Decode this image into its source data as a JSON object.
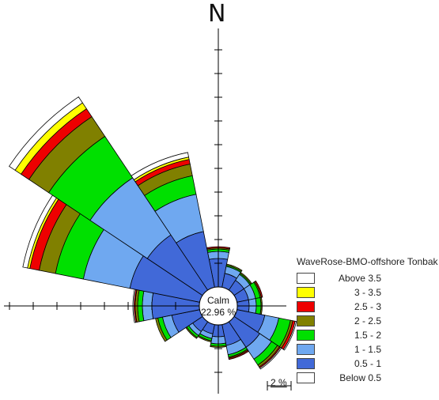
{
  "north_label": "N",
  "calm": {
    "label": "Calm",
    "value": "22.96 %"
  },
  "legend": {
    "title": "WaveRose-BMO-offshore Tonbak",
    "items": [
      {
        "label": "Above 3.5",
        "color": "#ffffff"
      },
      {
        "label": "3 - 3.5",
        "color": "#ffff00"
      },
      {
        "label": "2.5 -   3",
        "color": "#ee0000"
      },
      {
        "label": "2 - 2.5",
        "color": "#808000"
      },
      {
        "label": "1.5 -   2",
        "color": "#00e000"
      },
      {
        "label": "1 - 1.5",
        "color": "#6fa8f0"
      },
      {
        "label": "0.5 -   1",
        "color": "#4169d8"
      },
      {
        "label": "Below 0.5",
        "color": "#ffffff"
      }
    ]
  },
  "scale_label": "2 %",
  "chart_data": {
    "type": "wind-rose",
    "title": "WaveRose-BMO-offshore Tonbak",
    "calm_percent": 22.96,
    "bins": [
      "Below 0.5",
      "0.5 -   1",
      "1 - 1.5",
      "1.5 -   2",
      "2 - 2.5",
      "2.5 -   3",
      "3 - 3.5",
      "Above 3.5"
    ],
    "sectors": [
      {
        "direction_deg": 0,
        "cumulative_percent": [
          0.0,
          1.2,
          1.5,
          1.6,
          1.65,
          1.7,
          1.7,
          1.7
        ]
      },
      {
        "direction_deg": 22.5,
        "cumulative_percent": [
          0.0,
          0.6,
          0.9,
          0.95,
          1.0,
          1.0,
          1.0,
          1.0
        ]
      },
      {
        "direction_deg": 45,
        "cumulative_percent": [
          0.0,
          0.5,
          0.8,
          0.85,
          0.9,
          0.9,
          0.9,
          0.9
        ]
      },
      {
        "direction_deg": 67.5,
        "cumulative_percent": [
          0.0,
          0.5,
          0.8,
          1.0,
          1.05,
          1.1,
          1.1,
          1.1
        ]
      },
      {
        "direction_deg": 90,
        "cumulative_percent": [
          0.0,
          0.5,
          0.8,
          1.0,
          1.05,
          1.05,
          1.05,
          1.05
        ]
      },
      {
        "direction_deg": 112.5,
        "cumulative_percent": [
          0.0,
          1.2,
          1.8,
          2.3,
          2.4,
          2.5,
          2.5,
          2.55
        ]
      },
      {
        "direction_deg": 135,
        "cumulative_percent": [
          0.0,
          1.3,
          1.9,
          2.2,
          2.3,
          2.35,
          2.35,
          2.4
        ]
      },
      {
        "direction_deg": 157.5,
        "cumulative_percent": [
          0.0,
          0.9,
          1.3,
          1.4,
          1.45,
          1.5,
          1.5,
          1.5
        ]
      },
      {
        "direction_deg": 180,
        "cumulative_percent": [
          0.0,
          0.5,
          0.8,
          0.9,
          0.95,
          0.95,
          0.95,
          0.95
        ]
      },
      {
        "direction_deg": 202.5,
        "cumulative_percent": [
          0.0,
          0.4,
          0.6,
          0.7,
          0.75,
          0.75,
          0.75,
          0.75
        ]
      },
      {
        "direction_deg": 225,
        "cumulative_percent": [
          0.0,
          0.5,
          0.7,
          0.8,
          0.85,
          0.85,
          0.85,
          0.85
        ]
      },
      {
        "direction_deg": 247.5,
        "cumulative_percent": [
          0.0,
          1.2,
          1.6,
          1.8,
          1.9,
          1.9,
          1.9,
          1.9
        ]
      },
      {
        "direction_deg": 270,
        "cumulative_percent": [
          0.0,
          2.0,
          2.4,
          2.6,
          2.7,
          2.75,
          2.75,
          2.8
        ]
      },
      {
        "direction_deg": 292.5,
        "cumulative_percent": [
          0.0,
          3.0,
          5.0,
          6.2,
          6.9,
          7.3,
          7.4,
          7.6
        ]
      },
      {
        "direction_deg": 315,
        "cumulative_percent": [
          0.0,
          2.8,
          5.7,
          7.8,
          8.8,
          9.2,
          9.5,
          9.8
        ]
      },
      {
        "direction_deg": 337.5,
        "cumulative_percent": [
          0.0,
          2.4,
          4.0,
          4.8,
          5.3,
          5.5,
          5.6,
          5.8
        ]
      }
    ],
    "scale_percent": 2,
    "grid": false
  }
}
